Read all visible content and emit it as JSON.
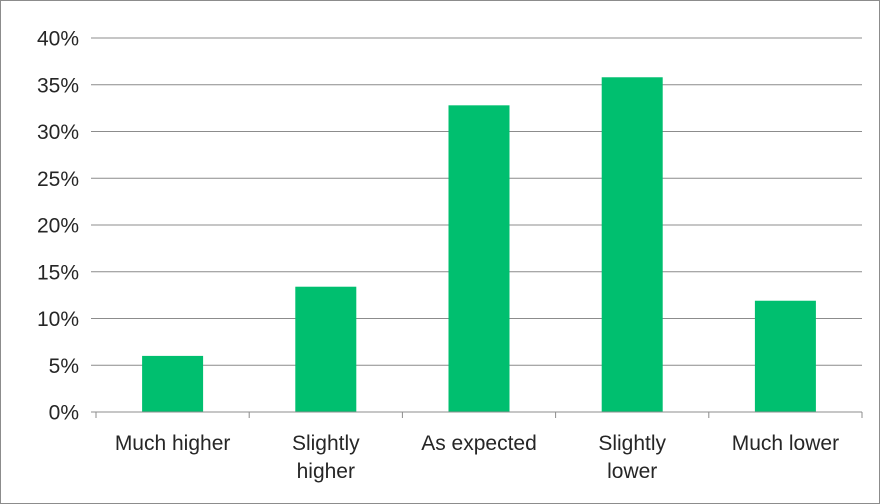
{
  "chart_data": {
    "type": "bar",
    "categories": [
      [
        "Much higher"
      ],
      [
        "Slightly",
        "higher"
      ],
      [
        "As expected"
      ],
      [
        "Slightly",
        "lower"
      ],
      [
        "Much lower"
      ]
    ],
    "values": [
      6,
      13.4,
      32.8,
      35.8,
      11.9
    ],
    "value_unit": "%",
    "yticks": [
      "0%",
      "5%",
      "10%",
      "15%",
      "20%",
      "25%",
      "30%",
      "35%",
      "40%"
    ],
    "ylim": [
      0,
      40
    ],
    "ytick_step": 5,
    "grid": true,
    "legend": "none",
    "colors": {
      "bar": "#00bf6f",
      "grid": "#8c8c8c",
      "axis": "#8c8c8c",
      "text": "#262626"
    }
  }
}
